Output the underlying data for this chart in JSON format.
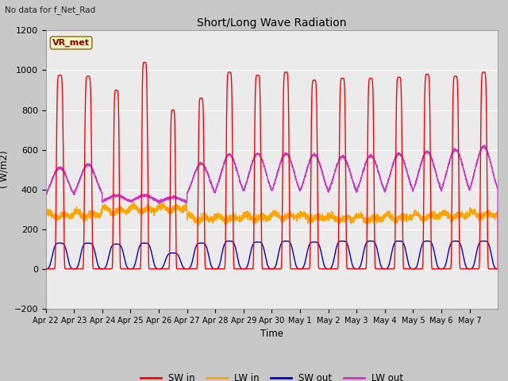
{
  "title": "Short/Long Wave Radiation",
  "subtitle": "No data for f_Net_Rad",
  "ylabel": "( W/m2)",
  "xlabel": "Time",
  "ylim": [
    -200,
    1200
  ],
  "yticks": [
    -200,
    0,
    200,
    400,
    600,
    800,
    1000,
    1200
  ],
  "plot_bg_color": "#ebebeb",
  "fig_bg_color": "#c8c8c8",
  "legend_label": "VR_met",
  "series": {
    "SW_in": {
      "color": "#ff0000",
      "label": "SW in"
    },
    "LW_in": {
      "color": "#ffa500",
      "label": "LW in"
    },
    "SW_out": {
      "color": "#0000cc",
      "label": "SW out"
    },
    "LW_out": {
      "color": "#cc33cc",
      "label": "LW out"
    }
  },
  "x_tick_labels": [
    "Apr 22",
    "Apr 23",
    "Apr 24",
    "Apr 25",
    "Apr 26",
    "Apr 27",
    "Apr 28",
    "Apr 29",
    "Apr 30",
    "May 1",
    "May 2",
    "May 3",
    "May 4",
    "May 5",
    "May 6",
    "May 7"
  ],
  "n_days": 16,
  "sw_in_heights": [
    975,
    970,
    900,
    1040,
    800,
    860,
    990,
    975,
    990,
    950,
    960,
    960,
    965,
    980,
    970,
    990
  ],
  "sw_in_widths": [
    0.12,
    0.12,
    0.1,
    0.1,
    0.09,
    0.1,
    0.11,
    0.11,
    0.11,
    0.11,
    0.11,
    0.11,
    0.11,
    0.11,
    0.11,
    0.11
  ],
  "lw_out_night": [
    330,
    330,
    330,
    330,
    330,
    330,
    330,
    330,
    330,
    330,
    330,
    330,
    330,
    330,
    330,
    330
  ],
  "lw_out_day": [
    510,
    525,
    370,
    370,
    360,
    530,
    575,
    580,
    580,
    575,
    565,
    570,
    580,
    590,
    600,
    615
  ],
  "sw_out_heights": [
    130,
    130,
    125,
    130,
    80,
    130,
    140,
    135,
    140,
    135,
    140,
    140,
    140,
    140,
    140,
    140
  ],
  "lw_in_base": [
    280,
    285,
    305,
    310,
    315,
    265,
    265,
    270,
    275,
    270,
    265,
    265,
    270,
    275,
    280,
    285
  ]
}
